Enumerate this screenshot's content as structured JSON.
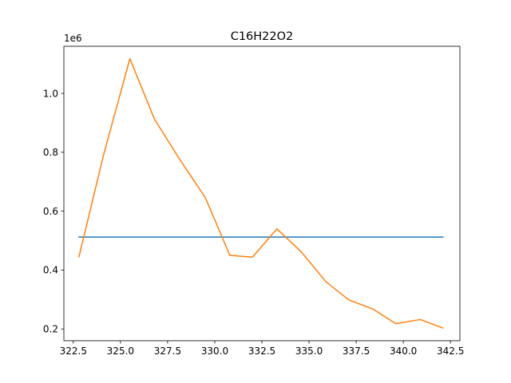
{
  "chart_data": {
    "type": "line",
    "title": "C16H22O2",
    "xlabel": "",
    "ylabel": "",
    "y_offset_label": "1e6",
    "xlim": [
      322.0,
      343.0
    ],
    "ylim": [
      160000,
      1160000
    ],
    "x_ticks": [
      322.5,
      325.0,
      327.5,
      330.0,
      332.5,
      335.0,
      337.5,
      340.0,
      342.5
    ],
    "x_tick_labels": [
      "322.5",
      "325.0",
      "327.5",
      "330.0",
      "332.5",
      "335.0",
      "337.5",
      "340.0",
      "342.5"
    ],
    "y_ticks": [
      200000,
      400000,
      600000,
      800000,
      1000000
    ],
    "y_tick_labels": [
      "0.2",
      "0.4",
      "0.6",
      "0.8",
      "1.0"
    ],
    "grid": false,
    "series": [
      {
        "color": "#1f77b4",
        "x": [
          322.8,
          342.1
        ],
        "y": [
          512000,
          512000
        ]
      },
      {
        "color": "#ff7f0e",
        "x": [
          322.8,
          324.1,
          325.5,
          326.8,
          328.1,
          329.5,
          330.8,
          332.0,
          333.3,
          334.6,
          335.9,
          337.1,
          338.4,
          339.6,
          340.9,
          342.1
        ],
        "y": [
          445000,
          790000,
          1118000,
          913000,
          780000,
          646000,
          450000,
          444000,
          540000,
          461000,
          360000,
          299000,
          267000,
          218000,
          232000,
          203000
        ]
      }
    ]
  }
}
